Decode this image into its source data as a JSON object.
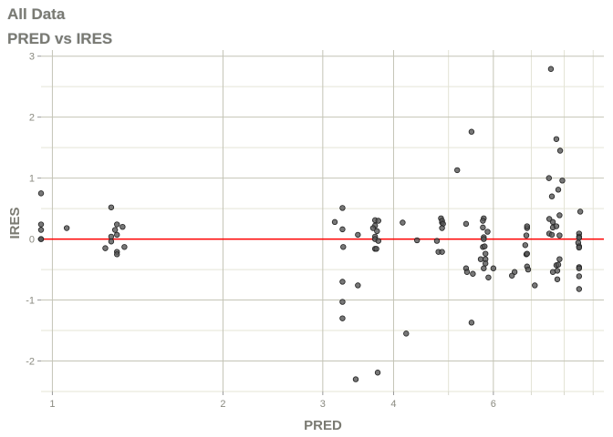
{
  "header": {
    "title": "All Data",
    "subtitle": "PRED vs IRES"
  },
  "chart_data": {
    "type": "scatter",
    "title": "All Data",
    "subtitle": "PRED vs IRES",
    "xlabel": "PRED",
    "ylabel": "IRES",
    "x_scale": "log",
    "xlim": [
      0.955,
      9.4
    ],
    "ylim": [
      -2.5,
      3.1
    ],
    "x_ticks": [
      1,
      2,
      3,
      4,
      6
    ],
    "x_tick_labels": [
      "1",
      "2",
      "3",
      "4",
      "6"
    ],
    "x_minor_ticks": [
      5,
      7,
      8,
      9
    ],
    "y_ticks": [
      -2,
      -1,
      0,
      1,
      2,
      3
    ],
    "y_tick_labels": [
      "-2",
      "-1",
      "0",
      "1",
      "2",
      "3"
    ],
    "y_minor_ticks": [
      -2.5,
      -1.5,
      -0.5,
      0.5,
      1.5,
      2.5
    ],
    "grid": true,
    "reference_line": {
      "y": 0,
      "color": "#ff0000"
    },
    "point_color": "#555555",
    "points": [
      [
        0.955,
        0.75
      ],
      [
        0.955,
        0.24
      ],
      [
        0.955,
        0.15
      ],
      [
        0.955,
        0.0
      ],
      [
        0.955,
        0.0
      ],
      [
        1.06,
        0.18
      ],
      [
        1.27,
        0.52
      ],
      [
        1.3,
        0.24
      ],
      [
        1.29,
        0.15
      ],
      [
        1.33,
        0.2
      ],
      [
        1.3,
        0.07
      ],
      [
        1.27,
        0.04
      ],
      [
        1.27,
        -0.04
      ],
      [
        1.24,
        -0.15
      ],
      [
        1.34,
        -0.13
      ],
      [
        1.3,
        -0.21
      ],
      [
        1.3,
        -0.25
      ],
      [
        3.25,
        0.51
      ],
      [
        3.15,
        0.28
      ],
      [
        3.25,
        0.16
      ],
      [
        3.26,
        -0.13
      ],
      [
        3.46,
        0.07
      ],
      [
        3.71,
        0.31
      ],
      [
        3.76,
        0.3
      ],
      [
        3.71,
        0.22
      ],
      [
        3.68,
        0.18
      ],
      [
        3.74,
        0.13
      ],
      [
        3.71,
        0.04
      ],
      [
        3.71,
        0.0
      ],
      [
        3.76,
        -0.03
      ],
      [
        3.71,
        -0.16
      ],
      [
        3.73,
        -0.16
      ],
      [
        4.15,
        0.27
      ],
      [
        4.4,
        -0.02
      ],
      [
        4.77,
        -0.03
      ],
      [
        4.87,
        0.27
      ],
      [
        4.85,
        0.34
      ],
      [
        4.87,
        0.3
      ],
      [
        4.89,
        0.25
      ],
      [
        4.87,
        0.18
      ],
      [
        4.8,
        -0.21
      ],
      [
        4.87,
        -0.21
      ],
      [
        5.37,
        0.25
      ],
      [
        5.49,
        1.76
      ],
      [
        5.18,
        1.13
      ],
      [
        5.77,
        0.34
      ],
      [
        5.75,
        0.3
      ],
      [
        5.75,
        0.19
      ],
      [
        5.86,
        0.12
      ],
      [
        5.77,
        0.03
      ],
      [
        5.77,
        0.0
      ],
      [
        5.75,
        -0.13
      ],
      [
        5.79,
        -0.12
      ],
      [
        5.81,
        -0.24
      ],
      [
        5.7,
        -0.33
      ],
      [
        5.81,
        -0.33
      ],
      [
        5.81,
        -0.4
      ],
      [
        5.77,
        -0.48
      ],
      [
        6.0,
        -0.48
      ],
      [
        5.88,
        -0.63
      ],
      [
        5.37,
        -0.48
      ],
      [
        5.39,
        -0.54
      ],
      [
        5.52,
        -0.57
      ],
      [
        5.49,
        -1.37
      ],
      [
        6.86,
        0.06
      ],
      [
        6.88,
        0.18
      ],
      [
        6.88,
        0.21
      ],
      [
        6.83,
        -0.1
      ],
      [
        6.86,
        -0.25
      ],
      [
        6.88,
        -0.24
      ],
      [
        6.88,
        -0.45
      ],
      [
        6.91,
        -0.5
      ],
      [
        6.54,
        -0.54
      ],
      [
        6.47,
        -0.6
      ],
      [
        7.1,
        -0.76
      ],
      [
        7.58,
        2.79
      ],
      [
        7.75,
        1.64
      ],
      [
        7.87,
        1.45
      ],
      [
        7.52,
        1.0
      ],
      [
        7.94,
        0.96
      ],
      [
        7.81,
        0.81
      ],
      [
        7.61,
        0.7
      ],
      [
        7.85,
        0.39
      ],
      [
        7.53,
        0.33
      ],
      [
        7.64,
        0.28
      ],
      [
        7.64,
        0.19
      ],
      [
        7.75,
        0.21
      ],
      [
        7.53,
        0.09
      ],
      [
        7.61,
        0.07
      ],
      [
        7.85,
        0.06
      ],
      [
        7.85,
        -0.33
      ],
      [
        7.75,
        -0.43
      ],
      [
        7.81,
        -0.42
      ],
      [
        7.64,
        -0.54
      ],
      [
        7.78,
        -0.52
      ],
      [
        7.78,
        -0.66
      ],
      [
        8.54,
        0.45
      ],
      [
        8.5,
        0.09
      ],
      [
        8.5,
        0.04
      ],
      [
        8.5,
        0.02
      ],
      [
        8.47,
        -0.06
      ],
      [
        8.5,
        -0.12
      ],
      [
        8.5,
        -0.14
      ],
      [
        8.5,
        -0.46
      ],
      [
        8.5,
        -0.48
      ],
      [
        8.5,
        -0.61
      ],
      [
        8.5,
        -0.82
      ],
      [
        3.43,
        -2.3
      ],
      [
        3.75,
        -2.19
      ],
      [
        3.25,
        -0.7
      ],
      [
        3.46,
        -0.76
      ],
      [
        3.25,
        -1.03
      ],
      [
        3.25,
        -1.3
      ],
      [
        4.21,
        -1.55
      ]
    ]
  }
}
